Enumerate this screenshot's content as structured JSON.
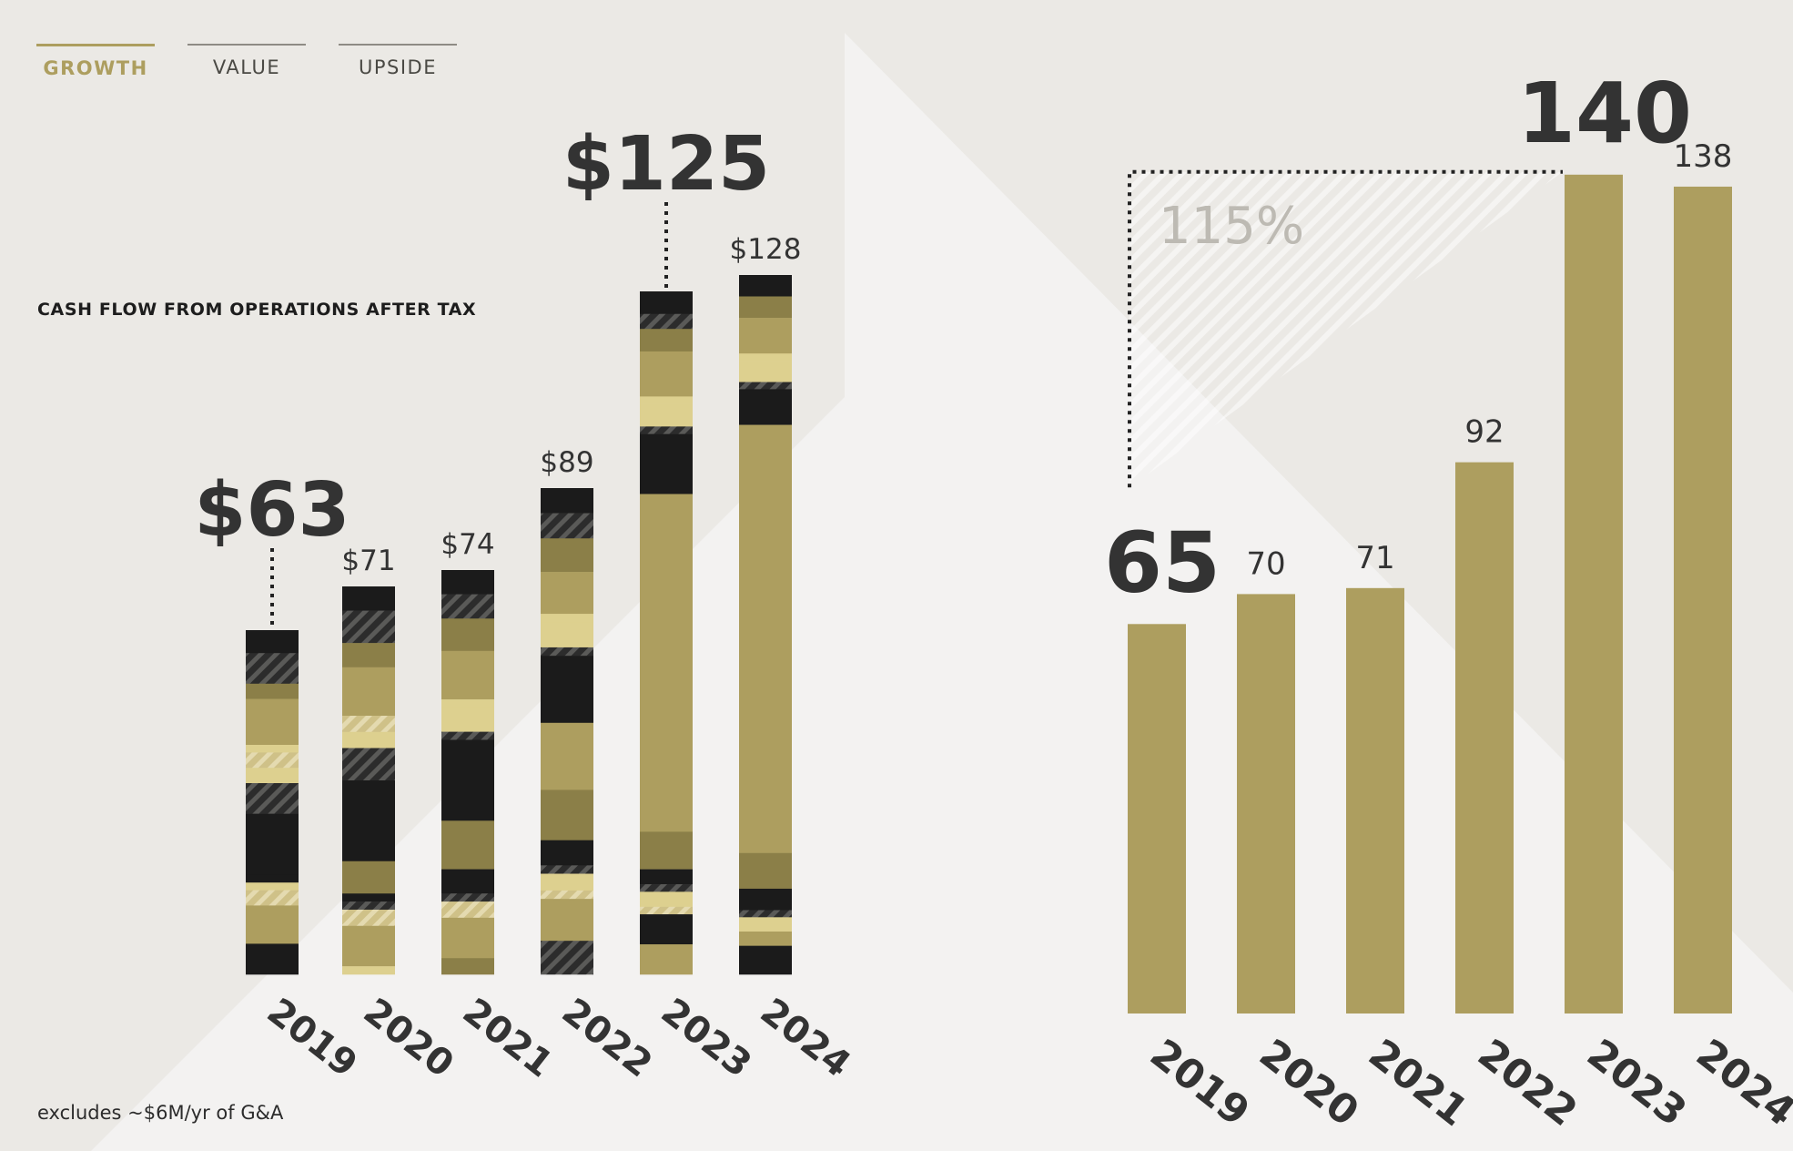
{
  "tabs": [
    {
      "label": "GROWTH",
      "active": true
    },
    {
      "label": "VALUE",
      "active": false
    },
    {
      "label": "UPSIDE",
      "active": false
    }
  ],
  "left_chart_title": "CASH FLOW FROM OPERATIONS AFTER TAX",
  "footnote": "excludes ~$6M/yr of G&A",
  "colors": {
    "gold": "#ad9e5f",
    "dark_gold": "#8b7f48",
    "light_gold": "#ddd08f",
    "black": "#1b1b1b",
    "text_dark": "#333333",
    "pct_text": "#bdbab3"
  },
  "chart_data": [
    {
      "type": "bar",
      "stacked": true,
      "categories": [
        "2019",
        "2020",
        "2021",
        "2022",
        "2023",
        "2024"
      ],
      "values": [
        63,
        71,
        74,
        89,
        125,
        128
      ],
      "value_labels": [
        "$63",
        "$71",
        "$74",
        "$89",
        "$125",
        "$128"
      ],
      "highlighted": [
        "2019",
        "2023"
      ]
    },
    {
      "type": "bar",
      "categories": [
        "2019",
        "2020",
        "2021",
        "2022",
        "2023",
        "2024"
      ],
      "values": [
        65,
        70,
        71,
        92,
        140,
        138
      ],
      "value_labels": [
        "65",
        "70",
        "71",
        "92",
        "140",
        "138"
      ],
      "highlighted": [
        "2019",
        "2023"
      ],
      "annotation": {
        "label": "115%",
        "from": "2019",
        "to": "2023"
      }
    }
  ]
}
